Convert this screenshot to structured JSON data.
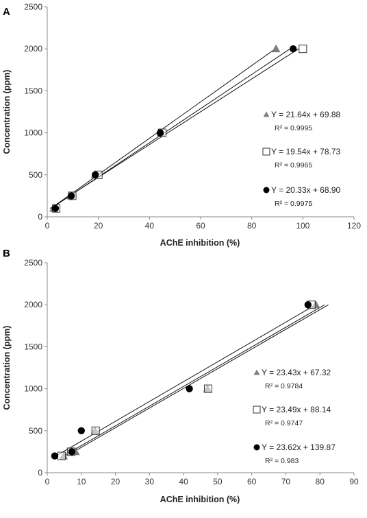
{
  "chart_data": [
    {
      "panel": "A",
      "type": "scatter",
      "xlabel": "AChE inhibition (%)",
      "ylabel": "Concentration (ppm)",
      "xlim": [
        0,
        120
      ],
      "ylim": [
        0,
        2500
      ],
      "xticks": [
        0,
        20,
        40,
        60,
        80,
        100,
        120
      ],
      "yticks": [
        0,
        500,
        1000,
        1500,
        2000,
        2500
      ],
      "grid": false,
      "series": [
        {
          "marker": "triangle",
          "color": "#808080",
          "x": [
            2.5,
            9.2,
            18.7,
            44.5,
            89.5
          ],
          "y": [
            100,
            250,
            500,
            1000,
            2000
          ],
          "equation": "Y = 21.64x + 69.88",
          "r2": "R² = 0.9995",
          "slope": 21.64,
          "intercept": 69.88
        },
        {
          "marker": "square",
          "color": "#ffffff",
          "x": [
            3.5,
            9.8,
            20.0,
            45.0,
            100.0
          ],
          "y": [
            100,
            250,
            500,
            1000,
            2000
          ],
          "equation": "Y = 19.54x + 78.73",
          "r2": "R² = 0.9965",
          "slope": 19.54,
          "intercept": 78.73
        },
        {
          "marker": "circle",
          "color": "#000000",
          "x": [
            3.2,
            9.4,
            18.8,
            44.2,
            96.2
          ],
          "y": [
            100,
            250,
            500,
            1000,
            2000
          ],
          "equation": "Y = 20.33x + 68.90",
          "r2": "R² = 0.9975",
          "slope": 20.33,
          "intercept": 68.9
        }
      ]
    },
    {
      "panel": "B",
      "type": "scatter",
      "xlabel": "AChE inhibition (%)",
      "ylabel": "Concentration (ppm)",
      "xlim": [
        0,
        90
      ],
      "ylim": [
        0,
        2500
      ],
      "xticks": [
        0,
        10,
        20,
        30,
        40,
        50,
        60,
        70,
        80,
        90
      ],
      "yticks": [
        0,
        500,
        1000,
        1500,
        2000,
        2500
      ],
      "grid": false,
      "series": [
        {
          "marker": "triangle",
          "color": "#808080",
          "x": [
            4.8,
            8.3,
            14.0,
            47.0,
            78.8
          ],
          "y": [
            200,
            250,
            500,
            1000,
            2000
          ],
          "equation": "Y = 23.43x + 67.32",
          "r2": "R² = 0.9784",
          "slope": 23.43,
          "intercept": 67.32
        },
        {
          "marker": "square",
          "color": "#ffffff",
          "x": [
            4.2,
            7.0,
            14.2,
            47.2,
            77.5
          ],
          "y": [
            200,
            250,
            500,
            1000,
            2000
          ],
          "equation": "Y = 23.49x + 88.14",
          "r2": "R² = 0.9747",
          "slope": 23.49,
          "intercept": 88.14
        },
        {
          "marker": "circle",
          "color": "#000000",
          "x": [
            2.2,
            7.2,
            10.0,
            41.7,
            76.5
          ],
          "y": [
            200,
            250,
            500,
            1000,
            2000
          ],
          "equation": "Y = 23.62x + 139.87",
          "r2": "R² = 0.983",
          "slope": 23.62,
          "intercept": 139.87
        }
      ]
    }
  ]
}
